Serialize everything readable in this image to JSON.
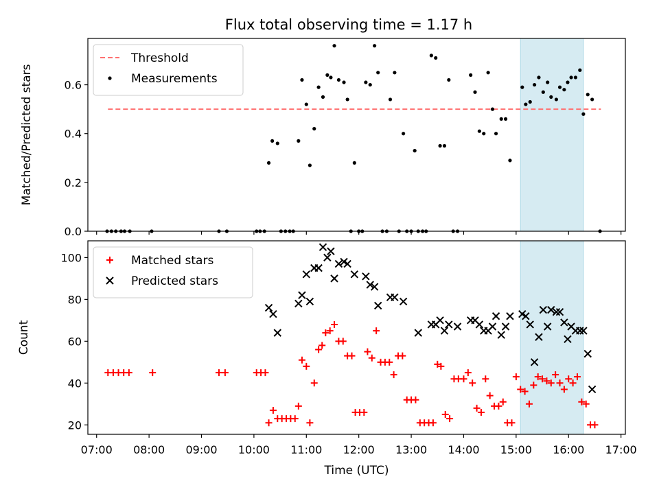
{
  "figure_title": "Flux total observing time = 1.17 h",
  "chart_data": [
    {
      "type": "scatter",
      "ylabel": "Matched/Predicted stars",
      "xlabel": "",
      "xlim": [
        "06:50",
        "17:05"
      ],
      "ylim": [
        0,
        0.79
      ],
      "yticks": [
        "0.0",
        "0.2",
        "0.4",
        "0.6"
      ],
      "grid": false,
      "legend_position": "top-left",
      "highlight_band": {
        "x": [
          "15:05",
          "16:17"
        ],
        "color": "#add8e6"
      },
      "threshold": {
        "name": "Threshold",
        "value": 0.5,
        "x": [
          "07:13",
          "16:37"
        ],
        "color": "#ff7070"
      },
      "series": [
        {
          "name": "Measurements",
          "color": "#000000",
          "marker": "dot",
          "points": [
            [
              "07:12",
              0
            ],
            [
              "07:17",
              0
            ],
            [
              "07:22",
              0
            ],
            [
              "07:28",
              0
            ],
            [
              "07:32",
              0
            ],
            [
              "07:38",
              0
            ],
            [
              "08:03",
              0
            ],
            [
              "09:20",
              0
            ],
            [
              "09:29",
              0
            ],
            [
              "10:03",
              0
            ],
            [
              "10:07",
              0
            ],
            [
              "10:12",
              0
            ],
            [
              "10:17",
              0.28
            ],
            [
              "10:21",
              0.37
            ],
            [
              "10:27",
              0.36
            ],
            [
              "10:31",
              0
            ],
            [
              "10:36",
              0
            ],
            [
              "10:41",
              0
            ],
            [
              "10:45",
              0
            ],
            [
              "10:51",
              0.37
            ],
            [
              "10:55",
              0.62
            ],
            [
              "11:00",
              0.52
            ],
            [
              "11:04",
              0.27
            ],
            [
              "11:09",
              0.42
            ],
            [
              "11:14",
              0.59
            ],
            [
              "11:19",
              0.55
            ],
            [
              "11:24",
              0.64
            ],
            [
              "11:28",
              0.63
            ],
            [
              "11:32",
              0.76
            ],
            [
              "11:37",
              0.62
            ],
            [
              "11:43",
              0.61
            ],
            [
              "11:47",
              0.54
            ],
            [
              "11:51",
              0
            ],
            [
              "11:55",
              0.28
            ],
            [
              "12:00",
              0
            ],
            [
              "12:04",
              0
            ],
            [
              "12:08",
              0.61
            ],
            [
              "12:13",
              0.6
            ],
            [
              "12:18",
              0.76
            ],
            [
              "12:22",
              0.65
            ],
            [
              "12:27",
              0
            ],
            [
              "12:32",
              0
            ],
            [
              "12:36",
              0.54
            ],
            [
              "12:41",
              0.65
            ],
            [
              "12:46",
              0
            ],
            [
              "12:51",
              0.4
            ],
            [
              "12:55",
              0
            ],
            [
              "13:00",
              0
            ],
            [
              "13:04",
              0.33
            ],
            [
              "13:08",
              0
            ],
            [
              "13:13",
              0
            ],
            [
              "13:17",
              0
            ],
            [
              "13:23",
              0.72
            ],
            [
              "13:28",
              0.71
            ],
            [
              "13:33",
              0.35
            ],
            [
              "13:38",
              0.35
            ],
            [
              "13:43",
              0.62
            ],
            [
              "13:48",
              0
            ],
            [
              "13:53",
              0
            ],
            [
              "14:08",
              0.64
            ],
            [
              "14:13",
              0.57
            ],
            [
              "14:18",
              0.41
            ],
            [
              "14:23",
              0.4
            ],
            [
              "14:28",
              0.65
            ],
            [
              "14:33",
              0.5
            ],
            [
              "14:37",
              0.4
            ],
            [
              "14:43",
              0.46
            ],
            [
              "14:48",
              0.46
            ],
            [
              "14:53",
              0.29
            ],
            [
              "15:07",
              0.59
            ],
            [
              "15:11",
              0.52
            ],
            [
              "15:16",
              0.53
            ],
            [
              "15:21",
              0.6
            ],
            [
              "15:26",
              0.63
            ],
            [
              "15:31",
              0.57
            ],
            [
              "15:36",
              0.61
            ],
            [
              "15:40",
              0.55
            ],
            [
              "15:46",
              0.54
            ],
            [
              "15:50",
              0.59
            ],
            [
              "15:55",
              0.58
            ],
            [
              "15:59",
              0.61
            ],
            [
              "16:03",
              0.63
            ],
            [
              "16:08",
              0.63
            ],
            [
              "16:13",
              0.66
            ],
            [
              "16:17",
              0.48
            ],
            [
              "16:22",
              0.56
            ],
            [
              "16:27",
              0.54
            ],
            [
              "16:36",
              0
            ]
          ]
        }
      ]
    },
    {
      "type": "scatter",
      "ylabel": "Count",
      "xlabel": "Time (UTC)",
      "xlim": [
        "06:50",
        "17:05"
      ],
      "ylim": [
        15.5,
        108
      ],
      "xticks": [
        "07:00",
        "08:00",
        "09:00",
        "10:00",
        "11:00",
        "12:00",
        "13:00",
        "14:00",
        "15:00",
        "16:00",
        "17:00"
      ],
      "yticks": [
        "20",
        "40",
        "60",
        "80",
        "100"
      ],
      "grid": false,
      "legend_position": "top-left",
      "highlight_band": {
        "x": [
          "15:05",
          "16:17"
        ],
        "color": "#add8e6"
      },
      "series": [
        {
          "name": "Matched stars",
          "color": "#ff0000",
          "marker": "plus",
          "points": [
            [
              "07:13",
              45
            ],
            [
              "07:19",
              45
            ],
            [
              "07:25",
              45
            ],
            [
              "07:31",
              45
            ],
            [
              "07:37",
              45
            ],
            [
              "08:04",
              45
            ],
            [
              "09:20",
              45
            ],
            [
              "09:27",
              45
            ],
            [
              "10:03",
              45
            ],
            [
              "10:08",
              45
            ],
            [
              "10:13",
              45
            ],
            [
              "10:17",
              21
            ],
            [
              "10:22",
              27
            ],
            [
              "10:27",
              23
            ],
            [
              "10:32",
              23
            ],
            [
              "10:37",
              23
            ],
            [
              "10:42",
              23
            ],
            [
              "10:47",
              23
            ],
            [
              "10:51",
              29
            ],
            [
              "10:55",
              51
            ],
            [
              "11:00",
              48
            ],
            [
              "11:04",
              21
            ],
            [
              "11:09",
              40
            ],
            [
              "11:14",
              56
            ],
            [
              "11:18",
              58
            ],
            [
              "11:22",
              64
            ],
            [
              "11:27",
              65
            ],
            [
              "11:32",
              68
            ],
            [
              "11:37",
              60
            ],
            [
              "11:42",
              60
            ],
            [
              "11:47",
              53
            ],
            [
              "11:52",
              53
            ],
            [
              "11:56",
              26
            ],
            [
              "12:01",
              26
            ],
            [
              "12:06",
              26
            ],
            [
              "12:10",
              55
            ],
            [
              "12:15",
              52
            ],
            [
              "12:20",
              65
            ],
            [
              "12:25",
              50
            ],
            [
              "12:30",
              50
            ],
            [
              "12:35",
              50
            ],
            [
              "12:40",
              44
            ],
            [
              "12:45",
              53
            ],
            [
              "12:50",
              53
            ],
            [
              "12:55",
              32
            ],
            [
              "13:00",
              32
            ],
            [
              "13:05",
              32
            ],
            [
              "13:10",
              21
            ],
            [
              "13:15",
              21
            ],
            [
              "13:20",
              21
            ],
            [
              "13:25",
              21
            ],
            [
              "13:30",
              49
            ],
            [
              "13:34",
              48
            ],
            [
              "13:39",
              25
            ],
            [
              "13:44",
              23
            ],
            [
              "13:49",
              42
            ],
            [
              "13:54",
              42
            ],
            [
              "14:00",
              42
            ],
            [
              "14:05",
              45
            ],
            [
              "14:10",
              40
            ],
            [
              "14:15",
              28
            ],
            [
              "14:20",
              26
            ],
            [
              "14:25",
              42
            ],
            [
              "14:30",
              34
            ],
            [
              "14:35",
              29
            ],
            [
              "14:40",
              29
            ],
            [
              "14:45",
              31
            ],
            [
              "14:50",
              21
            ],
            [
              "14:55",
              21
            ],
            [
              "15:00",
              43
            ],
            [
              "15:05",
              37
            ],
            [
              "15:10",
              36
            ],
            [
              "15:15",
              30
            ],
            [
              "15:20",
              39
            ],
            [
              "15:25",
              43
            ],
            [
              "15:30",
              42
            ],
            [
              "15:35",
              41
            ],
            [
              "15:40",
              40
            ],
            [
              "15:45",
              44
            ],
            [
              "15:50",
              40
            ],
            [
              "15:55",
              37
            ],
            [
              "16:00",
              42
            ],
            [
              "16:05",
              40
            ],
            [
              "16:10",
              43
            ],
            [
              "16:15",
              31
            ],
            [
              "16:20",
              30
            ],
            [
              "16:25",
              20
            ],
            [
              "16:30",
              20
            ]
          ]
        },
        {
          "name": "Predicted stars",
          "color": "#000000",
          "marker": "x",
          "points": [
            [
              "10:17",
              76
            ],
            [
              "10:22",
              73
            ],
            [
              "10:27",
              64
            ],
            [
              "10:51",
              78
            ],
            [
              "10:55",
              82
            ],
            [
              "11:00",
              92
            ],
            [
              "11:04",
              79
            ],
            [
              "11:09",
              95
            ],
            [
              "11:14",
              95
            ],
            [
              "11:19",
              105
            ],
            [
              "11:24",
              100
            ],
            [
              "11:28",
              103
            ],
            [
              "11:32",
              90
            ],
            [
              "11:37",
              97
            ],
            [
              "11:43",
              98
            ],
            [
              "11:47",
              97
            ],
            [
              "11:55",
              92
            ],
            [
              "12:08",
              91
            ],
            [
              "12:13",
              87
            ],
            [
              "12:18",
              86
            ],
            [
              "12:22",
              77
            ],
            [
              "12:36",
              81
            ],
            [
              "12:41",
              81
            ],
            [
              "12:51",
              79
            ],
            [
              "13:08",
              64
            ],
            [
              "13:23",
              68
            ],
            [
              "13:28",
              68
            ],
            [
              "13:33",
              70
            ],
            [
              "13:38",
              65
            ],
            [
              "13:43",
              68
            ],
            [
              "13:53",
              67
            ],
            [
              "14:08",
              70
            ],
            [
              "14:13",
              70
            ],
            [
              "14:18",
              68
            ],
            [
              "14:23",
              65
            ],
            [
              "14:28",
              65
            ],
            [
              "14:33",
              67
            ],
            [
              "14:37",
              72
            ],
            [
              "14:43",
              63
            ],
            [
              "14:48",
              67
            ],
            [
              "14:53",
              72
            ],
            [
              "15:07",
              73
            ],
            [
              "15:11",
              72
            ],
            [
              "15:16",
              68
            ],
            [
              "15:21",
              50
            ],
            [
              "15:26",
              62
            ],
            [
              "15:31",
              75
            ],
            [
              "15:36",
              67
            ],
            [
              "15:40",
              75
            ],
            [
              "15:46",
              74
            ],
            [
              "15:50",
              74
            ],
            [
              "15:55",
              69
            ],
            [
              "15:59",
              61
            ],
            [
              "16:03",
              67
            ],
            [
              "16:08",
              65
            ],
            [
              "16:13",
              65
            ],
            [
              "16:17",
              65
            ],
            [
              "16:22",
              54
            ],
            [
              "16:27",
              37
            ]
          ]
        }
      ]
    }
  ]
}
